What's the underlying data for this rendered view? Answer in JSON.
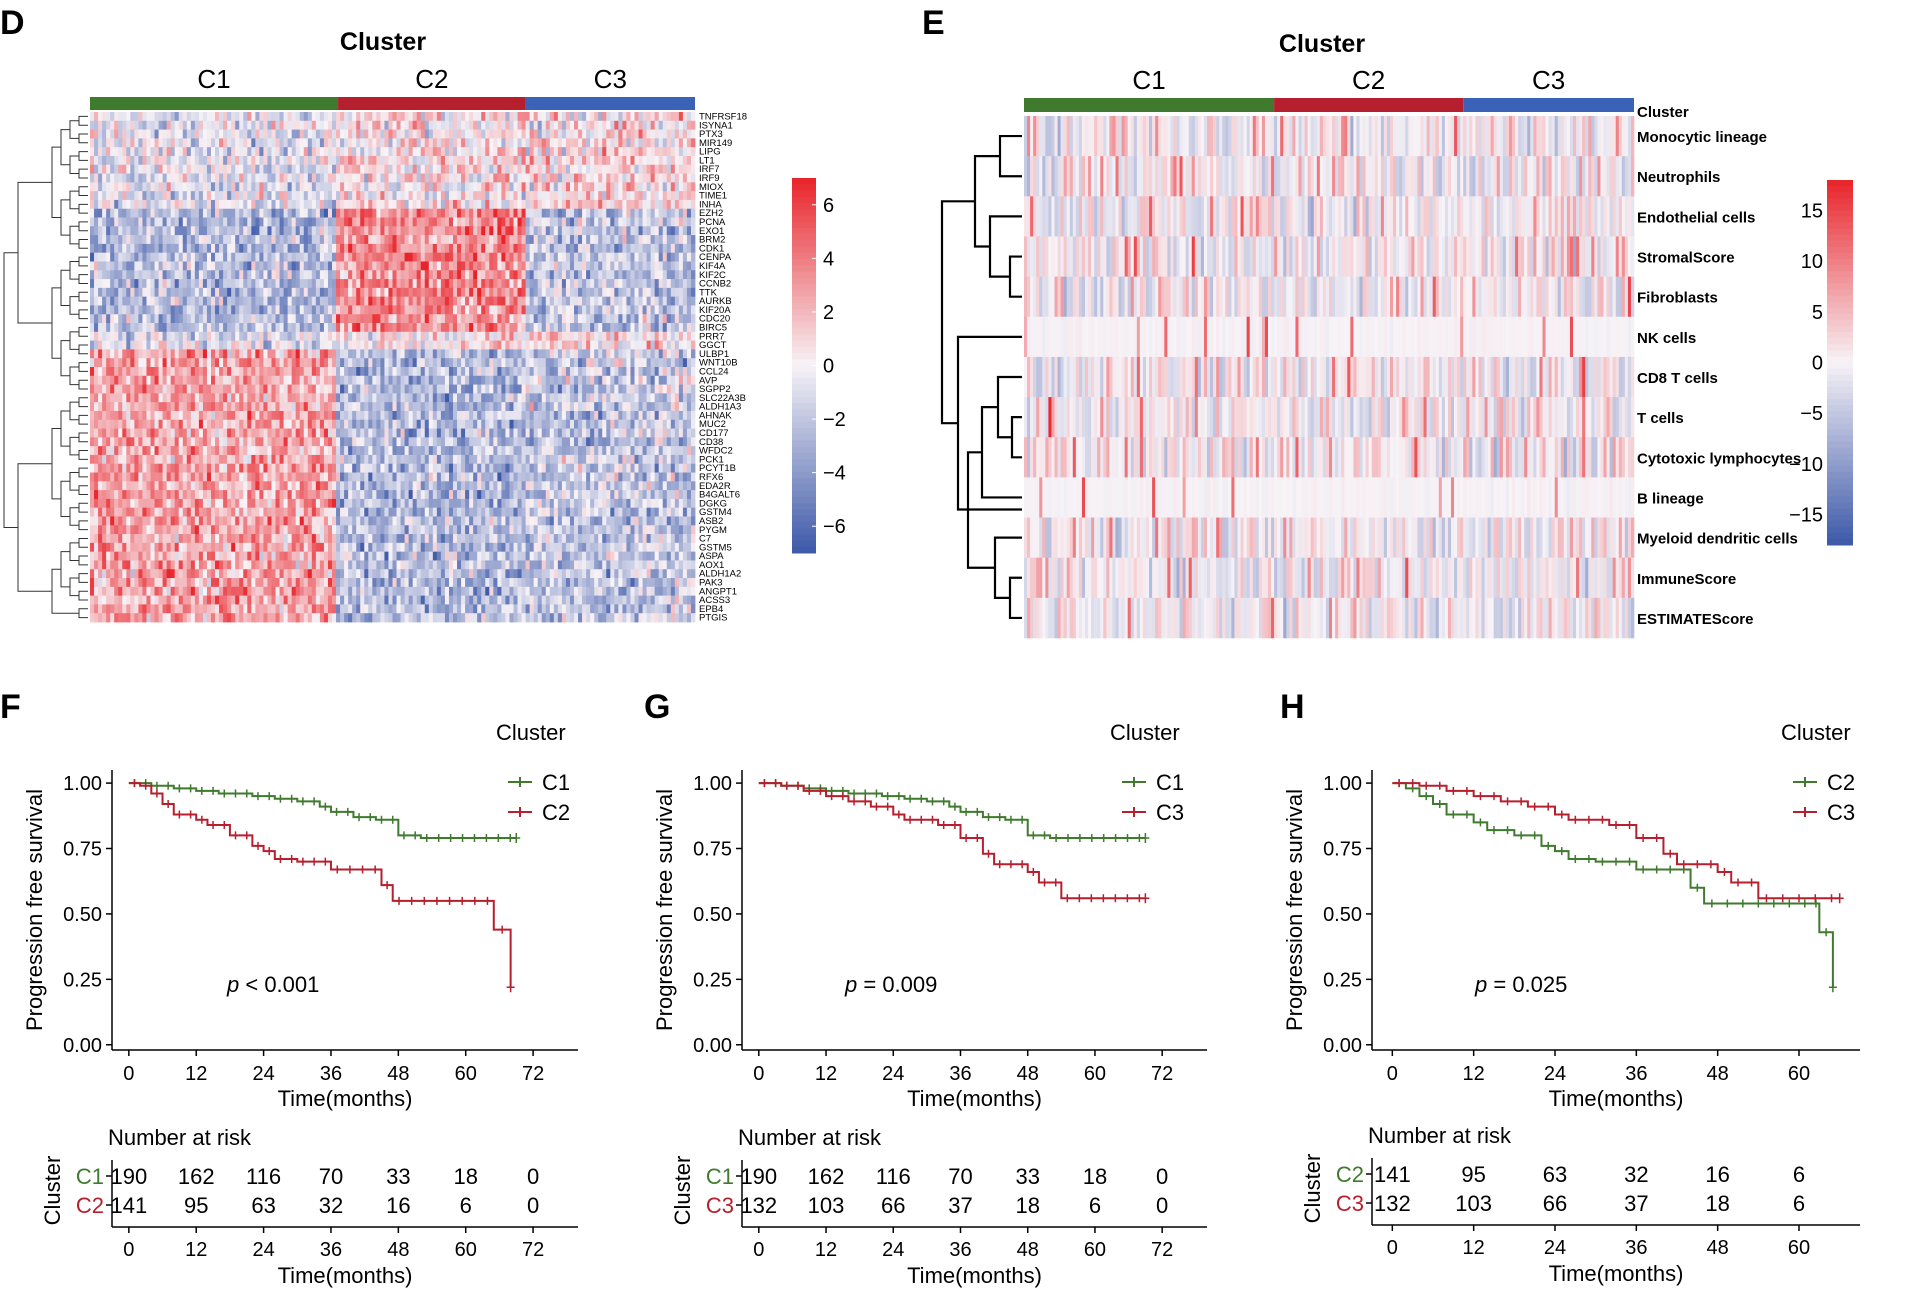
{
  "colors": {
    "c1": "#3f7a2e",
    "c2": "#b61f2e",
    "c3": "#3a63b8",
    "high": "#e8242a",
    "mid": "#f7f3f7",
    "low": "#3c58a8",
    "axis": "#000000"
  },
  "chart_data": [
    {
      "type": "heatmap",
      "panel": "D",
      "title": "Cluster",
      "clusters": [
        "C1",
        "C2",
        "C3"
      ],
      "cluster_sample_fraction": [
        0.41,
        0.31,
        0.28
      ],
      "rows": [
        "TNFRSF18",
        "ISYNA1",
        "PTX3",
        "MIR149",
        "LIPG",
        "LT1",
        "IRF7",
        "IRF9",
        "MIOX",
        "TIME1",
        "INHA",
        "EZH2",
        "PCNA",
        "EXO1",
        "BRM2",
        "CDK1",
        "CENPA",
        "KIF4A",
        "KIF2C",
        "CCNB2",
        "TTK",
        "AURKB",
        "KIF20A",
        "CDC20",
        "BIRC5",
        "PRR7",
        "GGCT",
        "ULBP1",
        "WNT10B",
        "CCL24",
        "AVP",
        "SGPP2",
        "SLC22A3B",
        "ALDH1A3",
        "AHNAK",
        "MUC2",
        "CD177",
        "CD38",
        "WFDC2",
        "PCK1",
        "PCYT1B",
        "RFX6",
        "EDA2R",
        "B4GALT6",
        "DGKG",
        "GSTM4",
        "ASB2",
        "PYGM",
        "C7",
        "GSTM5",
        "ASPA",
        "AOX1",
        "ALDH1A2",
        "PAK3",
        "ANGPT1",
        "ACSS3",
        "EPB4",
        "PTGIS"
      ],
      "row_cluster_pattern": [
        1,
        1,
        1,
        1,
        1,
        1,
        1,
        1,
        1,
        1,
        1,
        2,
        2,
        2,
        2,
        2,
        2,
        2,
        2,
        2,
        2,
        2,
        2,
        2,
        2,
        1,
        1,
        0,
        0,
        0,
        0,
        0,
        0,
        0,
        0,
        0,
        0,
        0,
        0,
        0,
        0,
        0,
        0,
        0,
        0,
        0,
        0,
        0,
        0,
        0,
        0,
        0,
        0,
        0,
        0,
        0,
        0,
        0
      ],
      "legend": {
        "ticks": [
          6,
          4,
          2,
          0,
          -2,
          -4,
          -6
        ],
        "range": [
          -7,
          7
        ]
      }
    },
    {
      "type": "heatmap",
      "panel": "E",
      "title": "Cluster",
      "clusters": [
        "C1",
        "C2",
        "C3"
      ],
      "cluster_sample_fraction": [
        0.41,
        0.31,
        0.28
      ],
      "annotation_label": "Cluster",
      "rows": [
        "Monocytic lineage",
        "Neutrophils",
        "Endothelial cells",
        "StromalScore",
        "Fibroblasts",
        "NK cells",
        "CD8 T cells",
        "T cells",
        "Cytotoxic lymphocytes",
        "B lineage",
        "Myeloid dendritic cells",
        "ImmuneScore",
        "ESTIMATEScore"
      ],
      "legend": {
        "ticks": [
          15,
          10,
          5,
          0,
          -5,
          -10,
          -15
        ],
        "range": [
          -18,
          18
        ]
      }
    },
    {
      "type": "line",
      "subtype": "kaplan-meier",
      "panel": "F",
      "ylabel": "Progression free survival",
      "xlabel": "Time(months)",
      "x_ticks": [
        0,
        12,
        24,
        36,
        48,
        60,
        72
      ],
      "y_ticks": [
        "0.00",
        "0.25",
        "0.50",
        "0.75",
        "1.00"
      ],
      "xlim": [
        -3,
        80
      ],
      "ylim": [
        -0.02,
        1.05
      ],
      "legend_title": "Cluster",
      "pvalue_label": "p",
      "pvalue_text": " < 0.001",
      "series": [
        {
          "name": "C1",
          "color_key": "c1",
          "steps": [
            [
              0,
              1.0
            ],
            [
              4,
              0.99
            ],
            [
              8,
              0.98
            ],
            [
              12,
              0.97
            ],
            [
              16,
              0.96
            ],
            [
              22,
              0.95
            ],
            [
              26,
              0.94
            ],
            [
              30,
              0.93
            ],
            [
              34,
              0.91
            ],
            [
              36,
              0.89
            ],
            [
              40,
              0.87
            ],
            [
              44,
              0.86
            ],
            [
              48,
              0.8
            ],
            [
              52,
              0.79
            ],
            [
              69,
              0.79
            ]
          ]
        },
        {
          "name": "C2",
          "color_key": "c2",
          "steps": [
            [
              0,
              1.0
            ],
            [
              2,
              0.99
            ],
            [
              4,
              0.96
            ],
            [
              6,
              0.92
            ],
            [
              8,
              0.88
            ],
            [
              12,
              0.86
            ],
            [
              14,
              0.84
            ],
            [
              18,
              0.8
            ],
            [
              22,
              0.76
            ],
            [
              24,
              0.74
            ],
            [
              26,
              0.71
            ],
            [
              30,
              0.7
            ],
            [
              36,
              0.67
            ],
            [
              45,
              0.61
            ],
            [
              47,
              0.55
            ],
            [
              65,
              0.44
            ],
            [
              68,
              0.22
            ]
          ]
        }
      ],
      "risk_table": {
        "title": "Number at risk",
        "ylabel": "Cluster",
        "xlabel": "Time(months)",
        "rows": [
          {
            "name": "C1",
            "color_key": "c1",
            "values": [
              "190",
              "162",
              "116",
              "70",
              "33",
              "18",
              "0"
            ]
          },
          {
            "name": "C2",
            "color_key": "c2",
            "values": [
              "141",
              "95",
              "63",
              "32",
              "16",
              "6",
              "0"
            ]
          }
        ]
      }
    },
    {
      "type": "line",
      "subtype": "kaplan-meier",
      "panel": "G",
      "ylabel": "Progression free survival",
      "xlabel": "Time(months)",
      "x_ticks": [
        0,
        12,
        24,
        36,
        48,
        60,
        72
      ],
      "y_ticks": [
        "0.00",
        "0.25",
        "0.50",
        "0.75",
        "1.00"
      ],
      "xlim": [
        -3,
        80
      ],
      "ylim": [
        -0.02,
        1.05
      ],
      "legend_title": "Cluster",
      "pvalue_label": "p",
      "pvalue_text": " = 0.009",
      "series": [
        {
          "name": "C1",
          "color_key": "c1",
          "steps": [
            [
              0,
              1.0
            ],
            [
              4,
              0.99
            ],
            [
              8,
              0.98
            ],
            [
              12,
              0.97
            ],
            [
              16,
              0.96
            ],
            [
              22,
              0.95
            ],
            [
              26,
              0.94
            ],
            [
              30,
              0.93
            ],
            [
              34,
              0.91
            ],
            [
              36,
              0.89
            ],
            [
              40,
              0.87
            ],
            [
              44,
              0.86
            ],
            [
              48,
              0.8
            ],
            [
              52,
              0.79
            ],
            [
              69,
              0.79
            ]
          ]
        },
        {
          "name": "C3",
          "color_key": "c2",
          "steps": [
            [
              0,
              1.0
            ],
            [
              4,
              0.99
            ],
            [
              8,
              0.97
            ],
            [
              12,
              0.95
            ],
            [
              16,
              0.93
            ],
            [
              20,
              0.91
            ],
            [
              24,
              0.88
            ],
            [
              26,
              0.86
            ],
            [
              32,
              0.84
            ],
            [
              36,
              0.79
            ],
            [
              40,
              0.73
            ],
            [
              42,
              0.69
            ],
            [
              48,
              0.66
            ],
            [
              50,
              0.62
            ],
            [
              54,
              0.56
            ],
            [
              69,
              0.56
            ]
          ]
        }
      ],
      "risk_table": {
        "title": "Number at risk",
        "ylabel": "Cluster",
        "xlabel": "Time(months)",
        "rows": [
          {
            "name": "C1",
            "color_key": "c1",
            "values": [
              "190",
              "162",
              "116",
              "70",
              "33",
              "18",
              "0"
            ]
          },
          {
            "name": "C3",
            "color_key": "c2",
            "values": [
              "132",
              "103",
              "66",
              "37",
              "18",
              "6",
              "0"
            ]
          }
        ]
      }
    },
    {
      "type": "line",
      "subtype": "kaplan-meier",
      "panel": "H",
      "ylabel": "Progression free survival",
      "xlabel": "Time(months)",
      "x_ticks": [
        0,
        12,
        24,
        36,
        48,
        60
      ],
      "y_ticks": [
        "0.00",
        "0.25",
        "0.50",
        "0.75",
        "1.00"
      ],
      "xlim": [
        -3,
        69
      ],
      "ylim": [
        -0.02,
        1.05
      ],
      "legend_title": "Cluster",
      "pvalue_label": "p",
      "pvalue_text": " = 0.025",
      "series": [
        {
          "name": "C2",
          "color_key": "c1",
          "steps": [
            [
              0,
              1.0
            ],
            [
              2,
              0.98
            ],
            [
              4,
              0.95
            ],
            [
              6,
              0.92
            ],
            [
              8,
              0.88
            ],
            [
              12,
              0.85
            ],
            [
              14,
              0.82
            ],
            [
              18,
              0.8
            ],
            [
              22,
              0.76
            ],
            [
              24,
              0.74
            ],
            [
              26,
              0.71
            ],
            [
              30,
              0.7
            ],
            [
              36,
              0.67
            ],
            [
              44,
              0.6
            ],
            [
              46,
              0.54
            ],
            [
              62,
              0.54
            ],
            [
              63,
              0.43
            ],
            [
              65,
              0.22
            ]
          ]
        },
        {
          "name": "C3",
          "color_key": "c2",
          "steps": [
            [
              0,
              1.0
            ],
            [
              4,
              0.99
            ],
            [
              8,
              0.97
            ],
            [
              12,
              0.95
            ],
            [
              16,
              0.93
            ],
            [
              20,
              0.91
            ],
            [
              24,
              0.88
            ],
            [
              26,
              0.86
            ],
            [
              32,
              0.84
            ],
            [
              36,
              0.79
            ],
            [
              40,
              0.73
            ],
            [
              42,
              0.69
            ],
            [
              48,
              0.66
            ],
            [
              50,
              0.62
            ],
            [
              54,
              0.56
            ],
            [
              66,
              0.56
            ]
          ]
        }
      ],
      "risk_table": {
        "title": "Number at risk",
        "ylabel": "Cluster",
        "xlabel": "Time(months)",
        "rows": [
          {
            "name": "C2",
            "color_key": "c1",
            "values": [
              "141",
              "95",
              "63",
              "32",
              "16",
              "6"
            ]
          },
          {
            "name": "C3",
            "color_key": "c2",
            "values": [
              "132",
              "103",
              "66",
              "37",
              "18",
              "6"
            ]
          }
        ]
      }
    }
  ]
}
